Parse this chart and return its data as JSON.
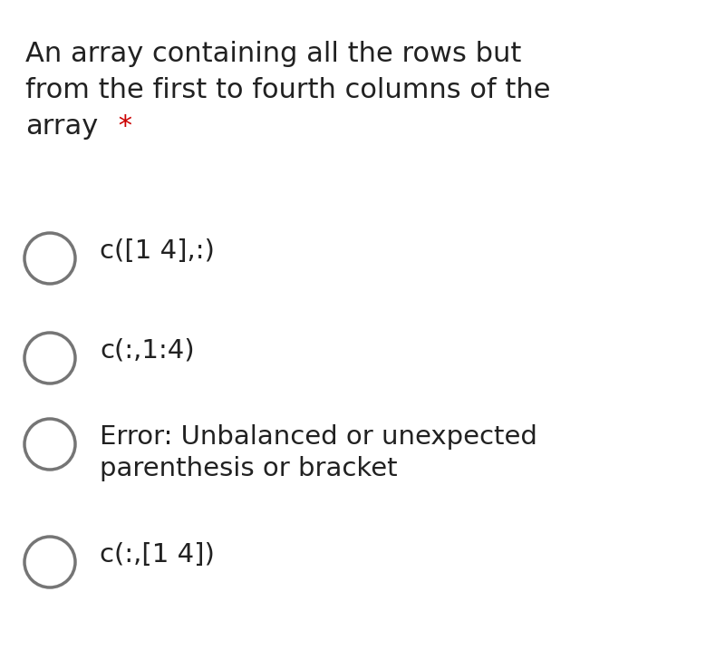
{
  "title_line1": "An array containing all the rows but",
  "title_line2": "from the first to fourth columns of the",
  "title_line3": "array",
  "asterisk": " *",
  "options": [
    "c([1 4],:)",
    "c(:,1:4)",
    "Error: Unbalanced or unexpected\nparenthesis or bracket",
    "c(:,[1 4])"
  ],
  "bg_color": "#ffffff",
  "text_color": "#212121",
  "asterisk_color": "#cc0000",
  "circle_edge_color": "#757575",
  "circle_face_color": "#ffffff",
  "circle_linewidth": 2.5,
  "title_fontsize": 22,
  "option_fontsize": 21,
  "fig_width": 8.0,
  "fig_height": 7.17,
  "dpi": 100
}
